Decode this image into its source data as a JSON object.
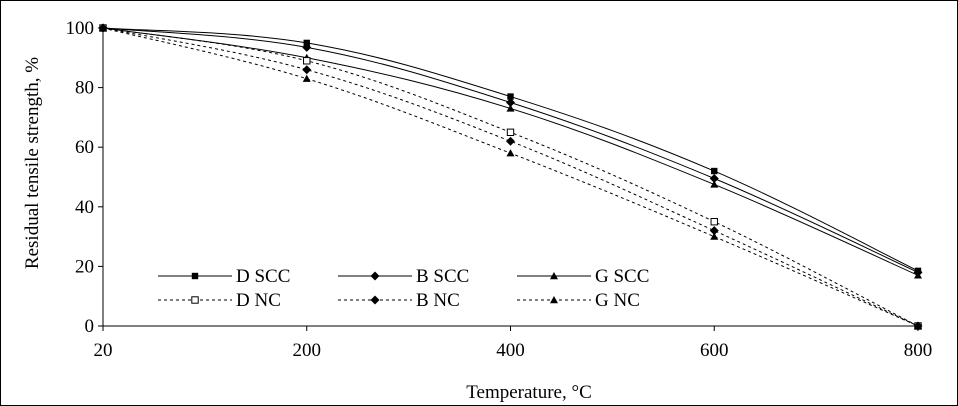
{
  "chart_data": {
    "type": "line",
    "title": "",
    "xlabel": "Temperature, °C",
    "ylabel": "Residual tensile strength,  %",
    "x": [
      20,
      200,
      400,
      600,
      800
    ],
    "x_tick_labels": [
      "20",
      "200",
      "400",
      "600",
      "800"
    ],
    "y_tick_labels": [
      "0",
      "20",
      "40",
      "60",
      "80",
      "100"
    ],
    "ylim": [
      0,
      100
    ],
    "grid": false,
    "legend_position": "bottom-left",
    "series": [
      {
        "name": "D SCC",
        "values": [
          100,
          95,
          77,
          52,
          18.5
        ],
        "line": "solid",
        "marker": "square"
      },
      {
        "name": "B SCC",
        "values": [
          100,
          93.5,
          75,
          49.5,
          18
        ],
        "line": "solid",
        "marker": "diamond"
      },
      {
        "name": "G SCC",
        "values": [
          100,
          90,
          73,
          47.5,
          17
        ],
        "line": "solid",
        "marker": "triangle"
      },
      {
        "name": "D NC",
        "values": [
          100,
          89,
          65,
          35,
          0
        ],
        "line": "dotted",
        "marker": "square-open"
      },
      {
        "name": "B NC",
        "values": [
          100,
          86,
          62,
          32,
          0
        ],
        "line": "dotted",
        "marker": "diamond"
      },
      {
        "name": "G NC",
        "values": [
          100,
          83,
          58,
          30,
          0
        ],
        "line": "dotted",
        "marker": "triangle"
      }
    ]
  }
}
